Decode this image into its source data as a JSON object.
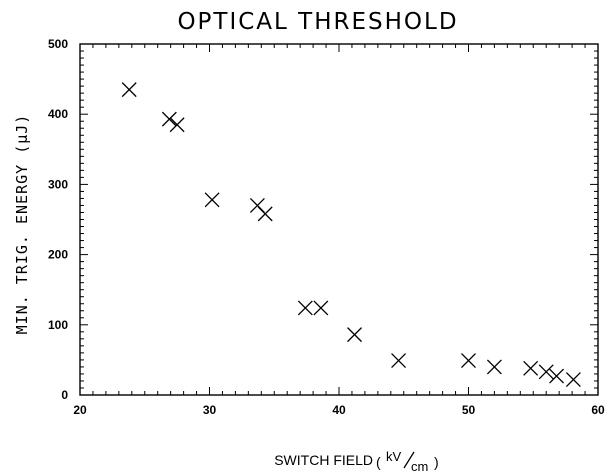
{
  "chart_data": {
    "type": "scatter",
    "title": "OPTICAL THRESHOLD",
    "xlabel": "SWITCH FIELD",
    "xlabel_unit": {
      "numerator": "kV",
      "denominator": "cm"
    },
    "ylabel": "MIN. TRIG. ENERGY (µJ)",
    "xlim": [
      20,
      60
    ],
    "ylim": [
      0,
      500
    ],
    "x_ticks": [
      20,
      30,
      40,
      50,
      60
    ],
    "y_ticks": [
      0,
      100,
      200,
      300,
      400,
      500
    ],
    "x_tick_labels": [
      "20",
      "30",
      "40",
      "50",
      "60"
    ],
    "y_tick_labels": [
      "0",
      "100",
      "200",
      "300",
      "400",
      "500"
    ],
    "grid": false,
    "marker": "x",
    "points": [
      {
        "x": 23.8,
        "y": 435
      },
      {
        "x": 26.9,
        "y": 393
      },
      {
        "x": 27.5,
        "y": 385
      },
      {
        "x": 30.2,
        "y": 278
      },
      {
        "x": 33.7,
        "y": 270
      },
      {
        "x": 34.3,
        "y": 258
      },
      {
        "x": 37.4,
        "y": 124
      },
      {
        "x": 38.6,
        "y": 124
      },
      {
        "x": 41.2,
        "y": 86
      },
      {
        "x": 44.6,
        "y": 49
      },
      {
        "x": 50.0,
        "y": 49
      },
      {
        "x": 52.0,
        "y": 40
      },
      {
        "x": 54.8,
        "y": 38
      },
      {
        "x": 56.0,
        "y": 33
      },
      {
        "x": 56.8,
        "y": 27
      },
      {
        "x": 58.1,
        "y": 22
      }
    ]
  }
}
